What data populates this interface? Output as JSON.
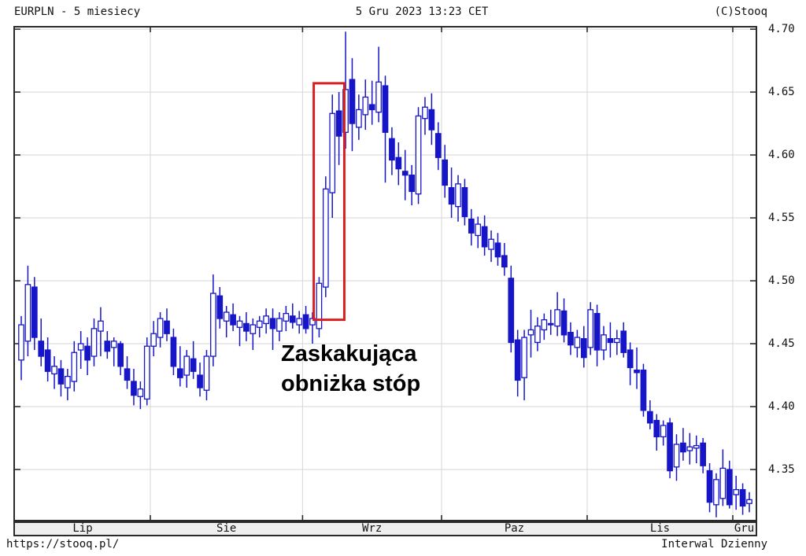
{
  "header": {
    "title": "EURPLN - 5 miesiecy",
    "datetime": "5 Gru 2023 13:23 CET",
    "copyright": "(C)Stooq"
  },
  "footer": {
    "url": "https://stooq.pl/",
    "interval": "Interwal Dzienny"
  },
  "annotation": {
    "line1": "Zaskakująca",
    "line2": "obniżka stóp"
  },
  "chart_data": {
    "type": "candlestick",
    "title": "EURPLN - 5 miesiecy",
    "instrument": "EURPLN",
    "interval_label": "Interwal Dzienny",
    "legend_position": "none",
    "grid": "on",
    "ylim": [
      4.31,
      4.7013
    ],
    "y_ticks": [
      4.7,
      4.65,
      4.6,
      4.55,
      4.5,
      4.45,
      4.4,
      4.35
    ],
    "y_tick_labels": [
      "4.70",
      "4.65",
      "4.60",
      "4.55",
      "4.50",
      "4.45",
      "4.40",
      "4.35"
    ],
    "x_labels": [
      "Lip",
      "Sie",
      "Wrz",
      "Paz",
      "Lis",
      "Gru"
    ],
    "month_start_indices": [
      0,
      20,
      43,
      64,
      86,
      108
    ],
    "highlight_box": {
      "candle_start": 45,
      "candle_end": 48,
      "price_top": 4.657,
      "price_bottom": 4.469
    },
    "colors": {
      "candle": "#1616c8",
      "up_fill": "#ffffff",
      "down_fill": "#1616c8",
      "grid": "#d6d6d6",
      "frame": "#2a2a2a",
      "highlight_box": "#d81f1f",
      "axis_strip_bg": "#efefef",
      "annotation_text": "#000000"
    },
    "candles": [
      [
        4.437,
        4.472,
        4.421,
        4.465
      ],
      [
        4.452,
        4.512,
        4.44,
        4.497
      ],
      [
        4.495,
        4.503,
        4.445,
        4.455
      ],
      [
        4.452,
        4.47,
        4.432,
        4.44
      ],
      [
        4.445,
        4.455,
        4.42,
        4.428
      ],
      [
        4.426,
        4.44,
        4.414,
        4.432
      ],
      [
        4.43,
        4.437,
        4.408,
        4.418
      ],
      [
        4.415,
        4.43,
        4.405,
        4.424
      ],
      [
        4.42,
        4.452,
        4.412,
        4.443
      ],
      [
        4.445,
        4.46,
        4.43,
        4.45
      ],
      [
        4.448,
        4.455,
        4.425,
        4.437
      ],
      [
        4.44,
        4.47,
        4.432,
        4.462
      ],
      [
        4.46,
        4.479,
        4.44,
        4.468
      ],
      [
        4.452,
        4.46,
        4.438,
        4.444
      ],
      [
        4.447,
        4.455,
        4.432,
        4.452
      ],
      [
        4.45,
        4.452,
        4.425,
        4.432
      ],
      [
        4.43,
        4.44,
        4.414,
        4.421
      ],
      [
        4.42,
        4.43,
        4.401,
        4.409
      ],
      [
        4.408,
        4.42,
        4.398,
        4.414
      ],
      [
        4.406,
        4.455,
        4.401,
        4.448
      ],
      [
        4.448,
        4.468,
        4.44,
        4.458
      ],
      [
        4.455,
        4.475,
        4.447,
        4.47
      ],
      [
        4.468,
        4.478,
        4.452,
        4.458
      ],
      [
        4.455,
        4.462,
        4.425,
        4.432
      ],
      [
        4.43,
        4.448,
        4.416,
        4.423
      ],
      [
        4.425,
        4.445,
        4.415,
        4.44
      ],
      [
        4.438,
        4.452,
        4.422,
        4.428
      ],
      [
        4.425,
        4.435,
        4.408,
        4.415
      ],
      [
        4.413,
        4.445,
        4.405,
        4.44
      ],
      [
        4.44,
        4.505,
        4.432,
        4.49
      ],
      [
        4.488,
        4.495,
        4.462,
        4.47
      ],
      [
        4.468,
        4.48,
        4.455,
        4.475
      ],
      [
        4.473,
        4.482,
        4.46,
        4.465
      ],
      [
        4.463,
        4.472,
        4.448,
        4.468
      ],
      [
        4.466,
        4.475,
        4.452,
        4.46
      ],
      [
        4.458,
        4.47,
        4.445,
        4.465
      ],
      [
        4.463,
        4.472,
        4.455,
        4.468
      ],
      [
        4.466,
        4.478,
        4.458,
        4.472
      ],
      [
        4.47,
        4.478,
        4.445,
        4.462
      ],
      [
        4.46,
        4.475,
        4.452,
        4.47
      ],
      [
        4.468,
        4.48,
        4.46,
        4.474
      ],
      [
        4.472,
        4.482,
        4.462,
        4.467
      ],
      [
        4.465,
        4.476,
        4.458,
        4.47
      ],
      [
        4.473,
        4.48,
        4.458,
        4.462
      ],
      [
        4.465,
        4.475,
        4.45,
        4.47
      ],
      [
        4.462,
        4.503,
        4.455,
        4.498
      ],
      [
        4.495,
        4.583,
        4.487,
        4.573
      ],
      [
        4.57,
        4.648,
        4.55,
        4.633
      ],
      [
        4.635,
        4.65,
        4.592,
        4.615
      ],
      [
        4.618,
        4.698,
        4.605,
        4.652
      ],
      [
        4.66,
        4.677,
        4.603,
        4.625
      ],
      [
        4.622,
        4.648,
        4.612,
        4.636
      ],
      [
        4.632,
        4.66,
        4.62,
        4.646
      ],
      [
        4.64,
        4.659,
        4.624,
        4.636
      ],
      [
        4.634,
        4.686,
        4.626,
        4.658
      ],
      [
        4.655,
        4.663,
        4.578,
        4.618
      ],
      [
        4.613,
        4.622,
        4.584,
        4.596
      ],
      [
        4.598,
        4.61,
        4.576,
        4.589
      ],
      [
        4.587,
        4.604,
        4.564,
        4.584
      ],
      [
        4.584,
        4.592,
        4.56,
        4.571
      ],
      [
        4.569,
        4.638,
        4.561,
        4.631
      ],
      [
        4.629,
        4.646,
        4.616,
        4.638
      ],
      [
        4.636,
        4.649,
        4.608,
        4.62
      ],
      [
        4.617,
        4.626,
        4.588,
        4.598
      ],
      [
        4.596,
        4.608,
        4.566,
        4.576
      ],
      [
        4.574,
        4.59,
        4.55,
        4.561
      ],
      [
        4.559,
        4.584,
        4.547,
        4.577
      ],
      [
        4.574,
        4.581,
        4.544,
        4.551
      ],
      [
        4.549,
        4.557,
        4.528,
        4.538
      ],
      [
        4.536,
        4.551,
        4.526,
        4.545
      ],
      [
        4.543,
        4.552,
        4.52,
        4.527
      ],
      [
        4.525,
        4.54,
        4.515,
        4.533
      ],
      [
        4.53,
        4.538,
        4.512,
        4.519
      ],
      [
        4.52,
        4.53,
        4.504,
        4.511
      ],
      [
        4.502,
        4.512,
        4.443,
        4.451
      ],
      [
        4.453,
        4.461,
        4.408,
        4.421
      ],
      [
        4.423,
        4.461,
        4.405,
        4.455
      ],
      [
        4.457,
        4.477,
        4.439,
        4.461
      ],
      [
        4.451,
        4.471,
        4.444,
        4.464
      ],
      [
        4.461,
        4.474,
        4.453,
        4.469
      ],
      [
        4.466,
        4.477,
        4.457,
        4.465
      ],
      [
        4.464,
        4.491,
        4.456,
        4.477
      ],
      [
        4.476,
        4.486,
        4.451,
        4.457
      ],
      [
        4.459,
        4.467,
        4.441,
        4.449
      ],
      [
        4.447,
        4.461,
        4.439,
        4.455
      ],
      [
        4.454,
        4.464,
        4.431,
        4.439
      ],
      [
        4.447,
        4.483,
        4.441,
        4.477
      ],
      [
        4.474,
        4.481,
        4.432,
        4.445
      ],
      [
        4.445,
        4.464,
        4.437,
        4.457
      ],
      [
        4.454,
        4.467,
        4.439,
        4.451
      ],
      [
        4.451,
        4.461,
        4.441,
        4.454
      ],
      [
        4.46,
        4.467,
        4.439,
        4.443
      ],
      [
        4.445,
        4.451,
        4.417,
        4.431
      ],
      [
        4.429,
        4.447,
        4.414,
        4.427
      ],
      [
        4.429,
        4.434,
        4.392,
        4.397
      ],
      [
        4.396,
        4.405,
        4.382,
        4.387
      ],
      [
        4.389,
        4.394,
        4.365,
        4.376
      ],
      [
        4.376,
        4.389,
        4.369,
        4.385
      ],
      [
        4.387,
        4.391,
        4.343,
        4.349
      ],
      [
        4.352,
        4.378,
        4.341,
        4.37
      ],
      [
        4.371,
        4.383,
        4.357,
        4.364
      ],
      [
        4.365,
        4.379,
        4.354,
        4.368
      ],
      [
        4.367,
        4.377,
        4.355,
        4.369
      ],
      [
        4.371,
        4.375,
        4.347,
        4.353
      ],
      [
        4.349,
        4.355,
        4.316,
        4.324
      ],
      [
        4.322,
        4.347,
        4.312,
        4.342
      ],
      [
        4.327,
        4.366,
        4.321,
        4.351
      ],
      [
        4.35,
        4.357,
        4.319,
        4.322
      ],
      [
        4.33,
        4.345,
        4.318,
        4.334
      ],
      [
        4.334,
        4.339,
        4.314,
        4.321
      ],
      [
        4.323,
        4.332,
        4.316,
        4.326
      ]
    ]
  }
}
